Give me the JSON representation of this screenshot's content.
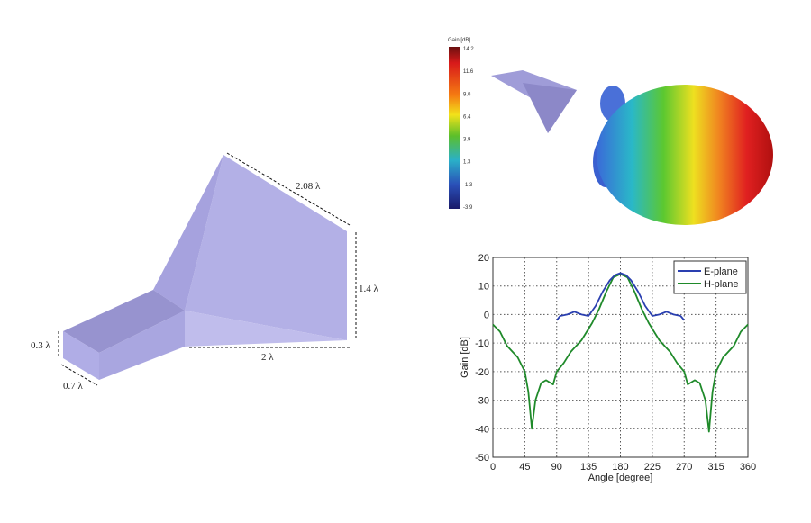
{
  "horn_dimensions": {
    "aperture_diagonal": "2.08 λ",
    "aperture_height": "1.4 λ",
    "flare_length": "2 λ",
    "waveguide_height": "0.3 λ",
    "waveguide_width": "0.7 λ"
  },
  "colorbar": {
    "title": "Gain [dB]",
    "ticks": [
      "14.2",
      "11.6",
      "9.0",
      "6.4",
      "3.9",
      "1.3",
      "-1.3",
      "-3.9"
    ]
  },
  "colors": {
    "horn": "#a9a6e0",
    "e_plane": "#2a3fb0",
    "h_plane": "#1f8a2a"
  },
  "chart_data": {
    "type": "line",
    "xlabel": "Angle [degree]",
    "ylabel": "Gain [dB]",
    "xlim": [
      0,
      360
    ],
    "ylim": [
      -50,
      20
    ],
    "xticks": [
      "0",
      "45",
      "90",
      "135",
      "180",
      "225",
      "270",
      "315",
      "360"
    ],
    "yticks": [
      "20",
      "10",
      "0",
      "-10",
      "-20",
      "-30",
      "-40",
      "-50"
    ],
    "grid": true,
    "legend_position": "top-right",
    "series": [
      {
        "name": "E-plane",
        "color": "#2a3fb0",
        "x": [
          90,
          95,
          105,
          115,
          125,
          135,
          145,
          155,
          165,
          172,
          180,
          188,
          195,
          205,
          215,
          225,
          235,
          245,
          255,
          265,
          270
        ],
        "y": [
          -2,
          -0.5,
          0,
          1,
          0,
          -0.5,
          3,
          8,
          12,
          13.8,
          14.5,
          13.8,
          12,
          8,
          3,
          -0.5,
          0,
          1,
          0,
          -0.5,
          -2
        ]
      },
      {
        "name": "H-plane",
        "color": "#1f8a2a",
        "x": [
          0,
          10,
          20,
          35,
          45,
          50,
          55,
          60,
          68,
          75,
          85,
          90,
          100,
          110,
          125,
          140,
          150,
          160,
          170,
          180,
          190,
          200,
          210,
          220,
          235,
          250,
          260,
          270,
          275,
          285,
          292,
          300,
          305,
          310,
          315,
          325,
          340,
          350,
          360
        ],
        "y": [
          -3.5,
          -6,
          -11,
          -15,
          -20,
          -27,
          -40,
          -30,
          -24,
          -23,
          -24.5,
          -20,
          -17,
          -13,
          -9,
          -3,
          2,
          8,
          13,
          14.2,
          13,
          8,
          2,
          -3,
          -9,
          -13,
          -17,
          -20,
          -24.5,
          -23,
          -24,
          -30,
          -41,
          -27,
          -20,
          -15,
          -11,
          -6,
          -3.5
        ]
      }
    ]
  }
}
